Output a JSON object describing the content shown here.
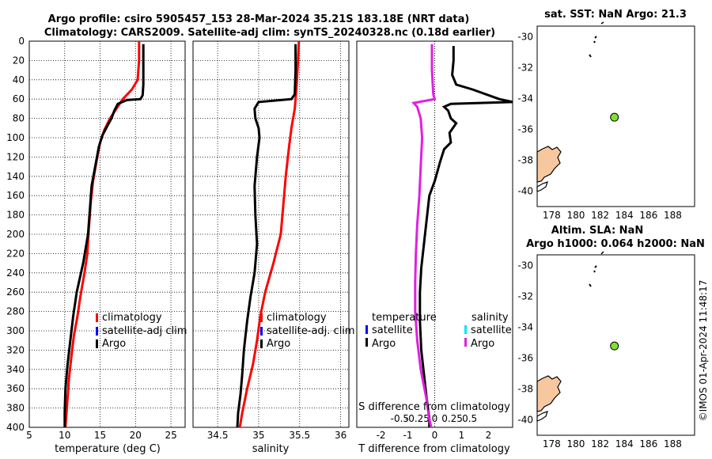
{
  "header": {
    "line1": "Argo profile: csiro 5905457_153 28-Mar-2024 35.21S 183.18E (NRT data)",
    "line2": "Climatology: CARS2009. Satellite-adj clim: synTS_20240328.nc (0.18d earlier)"
  },
  "side_stamp": "©IMOS 01-Apr-2024 11:48:17",
  "colors": {
    "climatology": "#ff0000",
    "satellite": "#0000ff",
    "argo": "#000000",
    "salinity_sat": "#00e5ff",
    "salinity_argo": "#e020e0",
    "land": "#f7c7a0",
    "float_marker": "#7fe030"
  },
  "chart_data": [
    {
      "id": "temperature",
      "type": "line",
      "xlabel": "temperature (deg C)",
      "ylabel": "",
      "xlim": [
        5,
        27
      ],
      "ylim": [
        400,
        0
      ],
      "xticks": [
        "5",
        "10",
        "15",
        "20",
        "25"
      ],
      "xtick_values": [
        5,
        10,
        15,
        20,
        25
      ],
      "yticks": [
        "0",
        "20",
        "40",
        "60",
        "80",
        "100",
        "120",
        "140",
        "160",
        "180",
        "200",
        "220",
        "240",
        "260",
        "280",
        "300",
        "320",
        "340",
        "360",
        "380",
        "400"
      ],
      "ytick_values": [
        0,
        20,
        40,
        60,
        80,
        100,
        120,
        140,
        160,
        180,
        200,
        220,
        240,
        260,
        280,
        300,
        320,
        340,
        360,
        380,
        400
      ],
      "grid": true,
      "legend": [
        "climatology",
        "satellite-adj clim",
        "Argo"
      ],
      "series": [
        {
          "name": "climatology",
          "points": [
            [
              20.5,
              0
            ],
            [
              20.5,
              20
            ],
            [
              20.3,
              40
            ],
            [
              19.5,
              50
            ],
            [
              18.2,
              60
            ],
            [
              17.3,
              70
            ],
            [
              16.4,
              80
            ],
            [
              15.6,
              92
            ],
            [
              15.0,
              105
            ],
            [
              14.6,
              120
            ],
            [
              14.0,
              145
            ],
            [
              13.7,
              165
            ],
            [
              13.4,
              195
            ],
            [
              13.2,
              220
            ],
            [
              12.8,
              240
            ],
            [
              12.2,
              265
            ],
            [
              11.8,
              285
            ],
            [
              11.3,
              305
            ],
            [
              10.9,
              330
            ],
            [
              10.6,
              350
            ],
            [
              10.4,
              370
            ],
            [
              10.2,
              390
            ],
            [
              10.1,
              400
            ]
          ]
        },
        {
          "name": "Argo",
          "points": [
            [
              21.1,
              3
            ],
            [
              21.1,
              20
            ],
            [
              21.1,
              45
            ],
            [
              21.0,
              56
            ],
            [
              20.7,
              60
            ],
            [
              18.8,
              61
            ],
            [
              17.5,
              65
            ],
            [
              17.0,
              72
            ],
            [
              16.6,
              80
            ],
            [
              16.0,
              88
            ],
            [
              15.3,
              98
            ],
            [
              14.8,
              110
            ],
            [
              14.3,
              130
            ],
            [
              13.8,
              150
            ],
            [
              13.6,
              170
            ],
            [
              13.3,
              200
            ],
            [
              12.6,
              230
            ],
            [
              11.7,
              260
            ],
            [
              11.2,
              285
            ],
            [
              10.8,
              310
            ],
            [
              10.4,
              335
            ],
            [
              10.1,
              360
            ],
            [
              10.0,
              385
            ],
            [
              10.0,
              400
            ]
          ]
        }
      ]
    },
    {
      "id": "salinity",
      "type": "line",
      "xlabel": "salinity",
      "xlim": [
        34.2,
        36.1
      ],
      "ylim": [
        400,
        0
      ],
      "xticks": [
        "34.5",
        "35",
        "35.5",
        "36"
      ],
      "xtick_values": [
        34.5,
        35,
        35.5,
        36
      ],
      "yticks": [],
      "grid": true,
      "legend": [
        "climatology",
        "satellite-adj. clim",
        "Argo"
      ],
      "series": [
        {
          "name": "climatology",
          "points": [
            [
              35.49,
              0
            ],
            [
              35.48,
              20
            ],
            [
              35.46,
              50
            ],
            [
              35.44,
              70
            ],
            [
              35.4,
              90
            ],
            [
              35.37,
              110
            ],
            [
              35.33,
              140
            ],
            [
              35.3,
              170
            ],
            [
              35.27,
              200
            ],
            [
              35.18,
              230
            ],
            [
              35.08,
              260
            ],
            [
              35.02,
              285
            ],
            [
              34.98,
              310
            ],
            [
              34.93,
              335
            ],
            [
              34.86,
              360
            ],
            [
              34.8,
              385
            ],
            [
              34.77,
              400
            ]
          ]
        },
        {
          "name": "Argo",
          "points": [
            [
              35.45,
              3
            ],
            [
              35.45,
              30
            ],
            [
              35.44,
              55
            ],
            [
              35.4,
              60
            ],
            [
              35.0,
              63
            ],
            [
              34.95,
              70
            ],
            [
              34.96,
              80
            ],
            [
              35.0,
              90
            ],
            [
              35.01,
              100
            ],
            [
              34.98,
              120
            ],
            [
              34.95,
              150
            ],
            [
              34.96,
              180
            ],
            [
              34.98,
              210
            ],
            [
              34.95,
              240
            ],
            [
              34.9,
              265
            ],
            [
              34.86,
              290
            ],
            [
              34.82,
              320
            ],
            [
              34.8,
              345
            ],
            [
              34.78,
              365
            ],
            [
              34.75,
              385
            ],
            [
              34.74,
              400
            ]
          ]
        }
      ]
    },
    {
      "id": "differences",
      "type": "line",
      "xlabel": "T difference from climatology",
      "xlabel_top": "S difference from climatology",
      "xlim": [
        -2.9,
        2.9
      ],
      "ylim": [
        400,
        0
      ],
      "xticks": [
        "-2",
        "-1",
        "0",
        "1",
        "2"
      ],
      "xtick_values": [
        -2,
        -1,
        0,
        1,
        2
      ],
      "xticks_top": [
        "-0.5",
        "-0.25",
        "0",
        "0.25",
        "0.5"
      ],
      "xtick_top_values": [
        -0.5,
        -0.25,
        0,
        0.25,
        0.5
      ],
      "grid": false,
      "legend_left_title": "temperature",
      "legend_right_title": "salinity",
      "legend_left": [
        "satellite",
        "Argo"
      ],
      "legend_right": [
        "satellite",
        "Argo"
      ],
      "series": [
        {
          "name": "temperature Argo",
          "points": [
            [
              0.7,
              5
            ],
            [
              0.7,
              20
            ],
            [
              0.65,
              35
            ],
            [
              0.8,
              45
            ],
            [
              1.4,
              50
            ],
            [
              2.4,
              60
            ],
            [
              2.9,
              63
            ],
            [
              0.6,
              65
            ],
            [
              0.35,
              68
            ],
            [
              0.5,
              72
            ],
            [
              0.6,
              80
            ],
            [
              0.8,
              85
            ],
            [
              0.55,
              95
            ],
            [
              0.6,
              105
            ],
            [
              0.35,
              112
            ],
            [
              0.2,
              125
            ],
            [
              0.0,
              145
            ],
            [
              -0.2,
              160
            ],
            [
              -0.3,
              185
            ],
            [
              -0.4,
              210
            ],
            [
              -0.5,
              235
            ],
            [
              -0.55,
              260
            ],
            [
              -0.55,
              290
            ],
            [
              -0.5,
              320
            ],
            [
              -0.4,
              345
            ],
            [
              -0.3,
              370
            ],
            [
              -0.2,
              390
            ],
            [
              -0.2,
              400
            ]
          ]
        },
        {
          "name": "salinity Argo",
          "points": [
            [
              -0.04,
              3
            ],
            [
              -0.04,
              30
            ],
            [
              -0.02,
              55
            ],
            [
              0.0,
              60
            ],
            [
              -0.3,
              64
            ],
            [
              -0.25,
              68
            ],
            [
              -0.2,
              80
            ],
            [
              -0.18,
              100
            ],
            [
              -0.2,
              130
            ],
            [
              -0.22,
              160
            ],
            [
              -0.25,
              190
            ],
            [
              -0.27,
              220
            ],
            [
              -0.28,
              250
            ],
            [
              -0.28,
              280
            ],
            [
              -0.25,
              310
            ],
            [
              -0.2,
              340
            ],
            [
              -0.12,
              370
            ],
            [
              -0.08,
              390
            ],
            [
              -0.05,
              400
            ]
          ]
        }
      ]
    }
  ],
  "map_top": {
    "title": "sat. SST: NaN Argo: 21.3",
    "yticks": [
      "-30",
      "-32",
      "-34",
      "-36",
      "-38",
      "-40"
    ],
    "xticks": [
      "178",
      "180",
      "182",
      "184",
      "186",
      "188"
    ],
    "lon_range": [
      176.8,
      189.8
    ],
    "lat_range": [
      -41.0,
      -29.3
    ],
    "float_lon": 183.18,
    "float_lat": -35.21
  },
  "map_bottom": {
    "title_line1": "Altim. SLA: NaN",
    "title_line2": "Argo h1000: 0.064 h2000: NaN",
    "yticks": [
      "-30",
      "-32",
      "-34",
      "-36",
      "-38",
      "-40"
    ],
    "xticks": [
      "178",
      "180",
      "182",
      "184",
      "186",
      "188"
    ],
    "lon_range": [
      176.8,
      189.8
    ],
    "lat_range": [
      -41.0,
      -29.3
    ],
    "float_lon": 183.18,
    "float_lat": -35.21
  }
}
